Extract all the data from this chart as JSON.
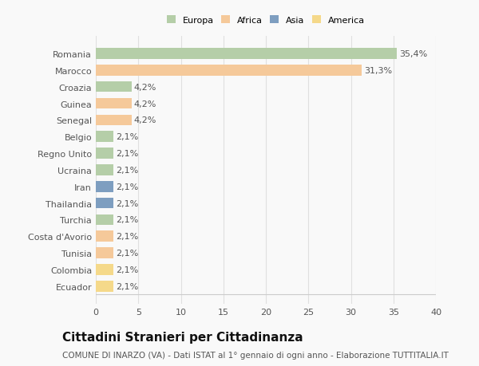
{
  "categories": [
    "Romania",
    "Marocco",
    "Croazia",
    "Guinea",
    "Senegal",
    "Belgio",
    "Regno Unito",
    "Ucraina",
    "Iran",
    "Thailandia",
    "Turchia",
    "Costa d'Avorio",
    "Tunisia",
    "Colombia",
    "Ecuador"
  ],
  "values": [
    35.4,
    31.3,
    4.2,
    4.2,
    4.2,
    2.1,
    2.1,
    2.1,
    2.1,
    2.1,
    2.1,
    2.1,
    2.1,
    2.1,
    2.1
  ],
  "labels": [
    "35,4%",
    "31,3%",
    "4,2%",
    "4,2%",
    "4,2%",
    "2,1%",
    "2,1%",
    "2,1%",
    "2,1%",
    "2,1%",
    "2,1%",
    "2,1%",
    "2,1%",
    "2,1%",
    "2,1%"
  ],
  "colors": [
    "#b5cea8",
    "#f5c99a",
    "#b5cea8",
    "#f5c99a",
    "#f5c99a",
    "#b5cea8",
    "#b5cea8",
    "#b5cea8",
    "#7e9ec0",
    "#7e9ec0",
    "#b5cea8",
    "#f5c99a",
    "#f5c99a",
    "#f5d98a",
    "#f5d98a"
  ],
  "legend_labels": [
    "Europa",
    "Africa",
    "Asia",
    "America"
  ],
  "legend_colors": [
    "#b5cea8",
    "#f5c99a",
    "#7e9ec0",
    "#f5d98a"
  ],
  "title": "Cittadini Stranieri per Cittadinanza",
  "subtitle": "COMUNE DI INARZO (VA) - Dati ISTAT al 1° gennaio di ogni anno - Elaborazione TUTTITALIA.IT",
  "xlim": [
    0,
    40
  ],
  "xticks": [
    0,
    5,
    10,
    15,
    20,
    25,
    30,
    35,
    40
  ],
  "background_color": "#f9f9f9",
  "grid_color": "#e0e0e0",
  "title_fontsize": 11,
  "subtitle_fontsize": 7.5,
  "label_fontsize": 8,
  "tick_fontsize": 8
}
